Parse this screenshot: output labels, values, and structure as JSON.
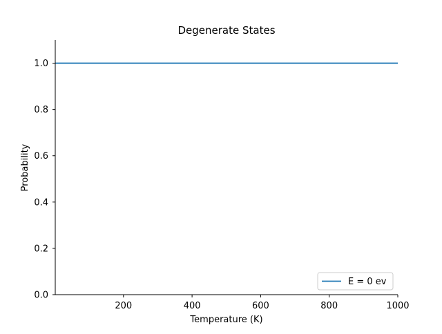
{
  "chart_data": {
    "type": "line",
    "title": "Degenerate States",
    "xlabel": "Temperature (K)",
    "ylabel": "Probability",
    "xlim": [
      1,
      1000
    ],
    "ylim": [
      0,
      1.1
    ],
    "x_ticks": [
      200,
      400,
      600,
      800,
      1000
    ],
    "x_tick_labels": [
      "200",
      "400",
      "600",
      "800",
      "1000"
    ],
    "y_ticks": [
      0.0,
      0.2,
      0.4,
      0.6,
      0.8,
      1.0
    ],
    "y_tick_labels": [
      "0.0",
      "0.2",
      "0.4",
      "0.6",
      "0.8",
      "1.0"
    ],
    "grid": false,
    "legend_position": "lower-right",
    "series": [
      {
        "name": "E = 0 ev",
        "color": "#1f77b4",
        "x": [
          1,
          1000
        ],
        "y": [
          1.0,
          1.0
        ]
      }
    ]
  }
}
